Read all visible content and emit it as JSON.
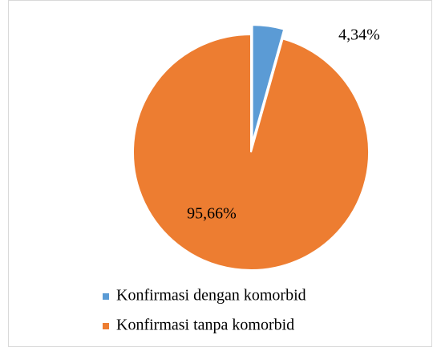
{
  "chart_data": {
    "type": "pie",
    "categories": [
      "Konfirmasi dengan komorbid",
      "Konfirmasi tanpa komorbid"
    ],
    "values": [
      4.34,
      95.66
    ],
    "value_labels": [
      "4,34%",
      "95,66%"
    ],
    "colors": [
      "#5b9bd5",
      "#ed7d31"
    ],
    "legend": "bottom"
  }
}
